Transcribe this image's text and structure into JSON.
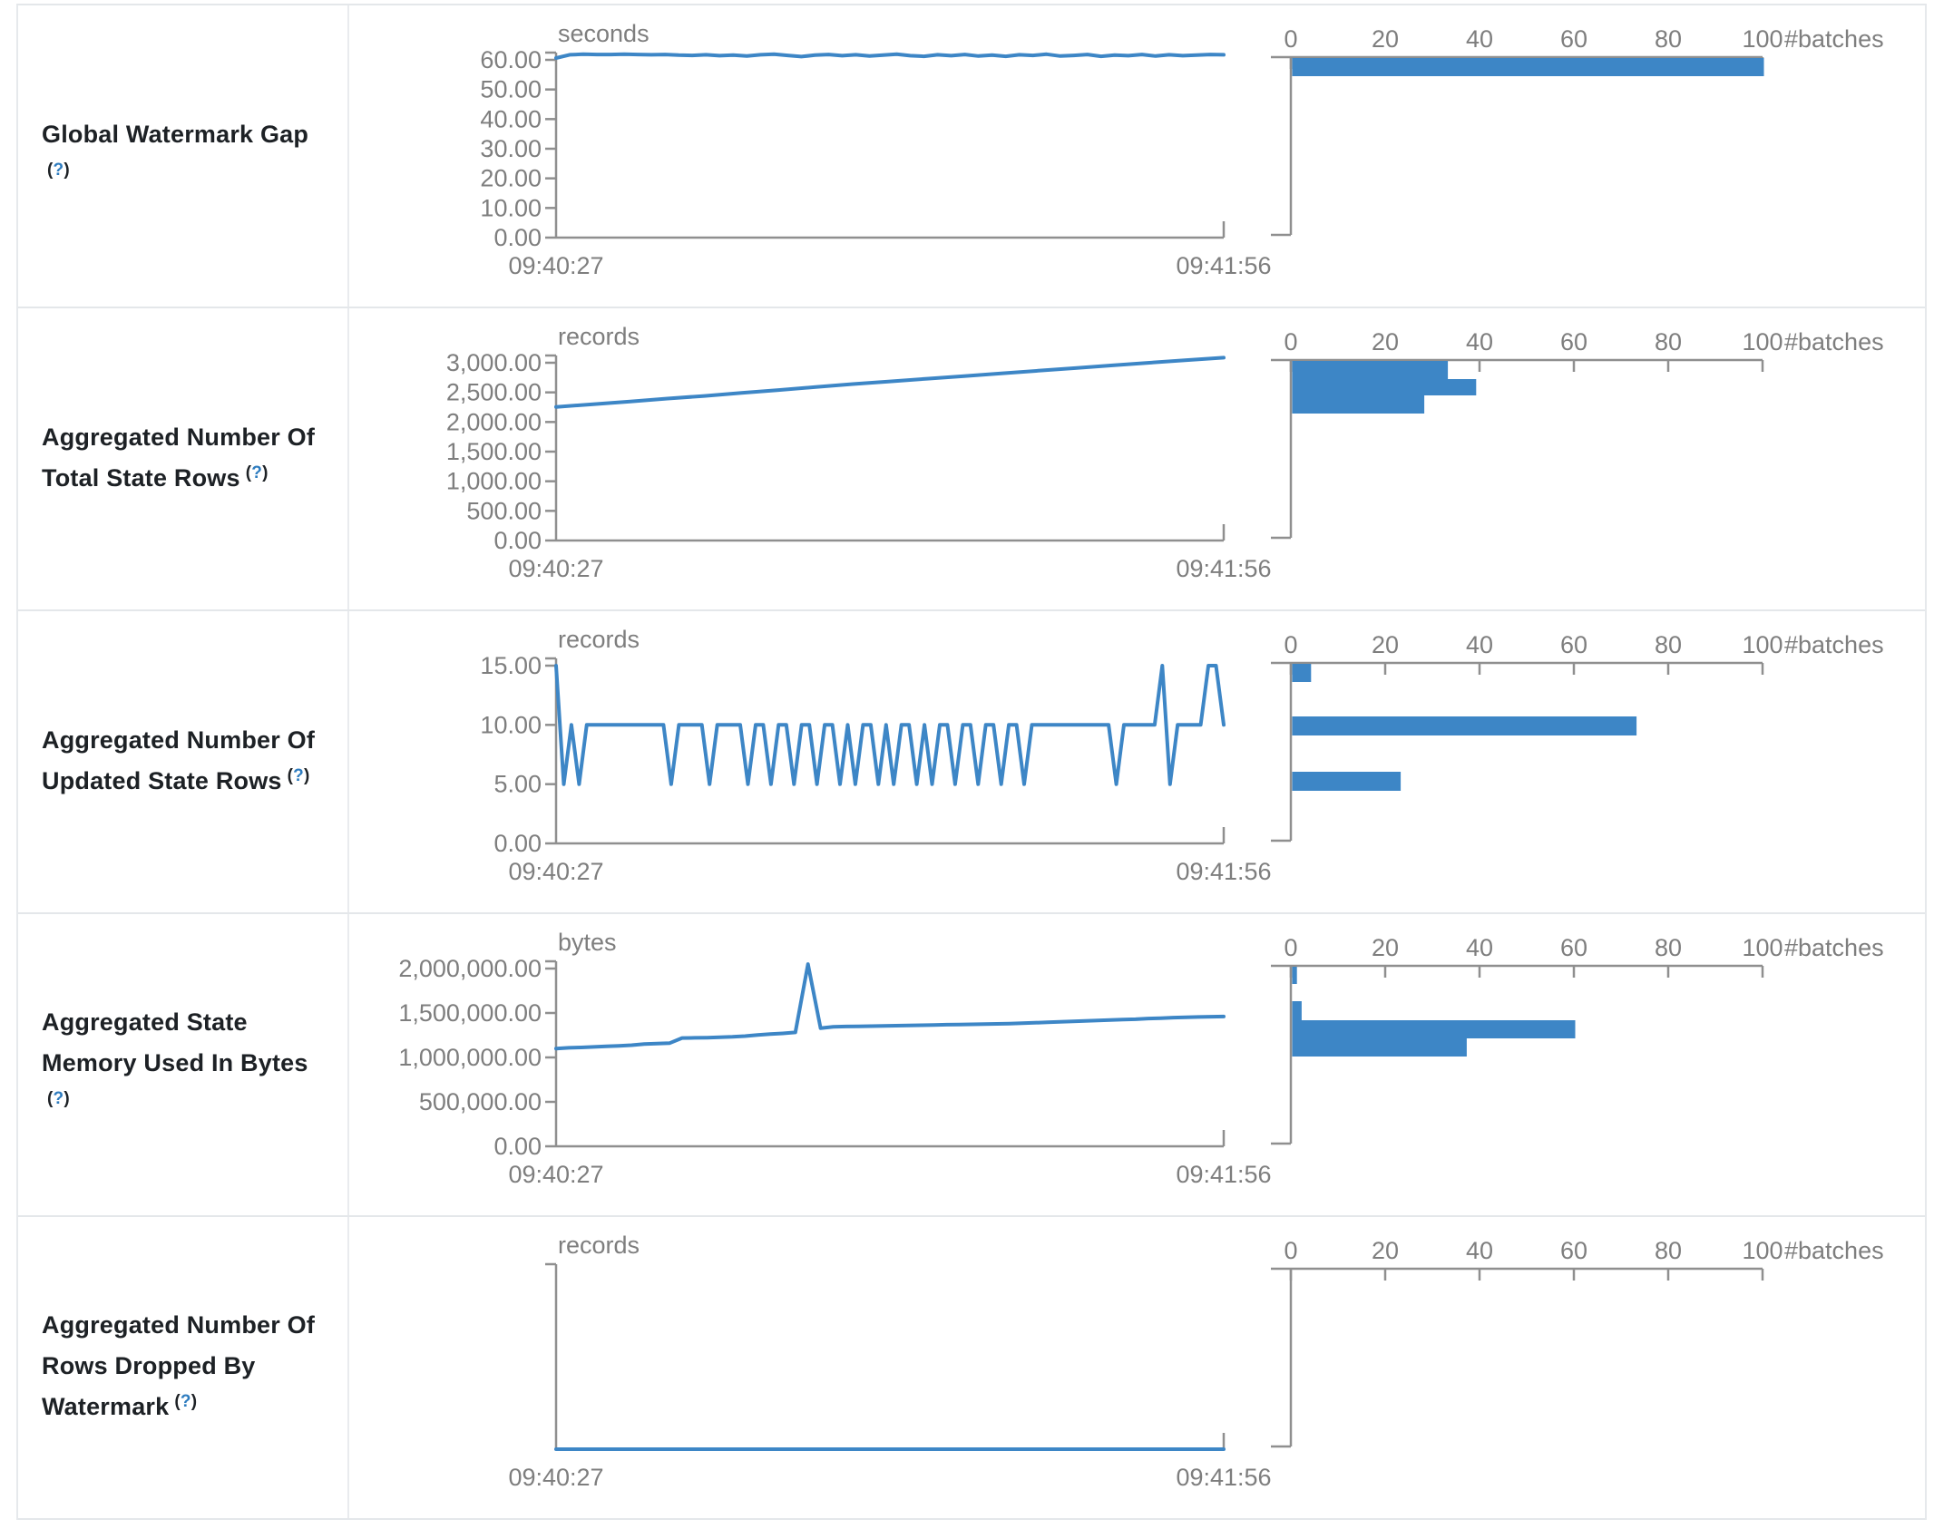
{
  "colors": {
    "accent_blue": "#3d86c6",
    "axis_gray": "#8f8f8f",
    "label_gray": "#7e7e7e",
    "title_dark": "#1d2125",
    "help_blue": "#2e7cbf",
    "border": "#e4e7ea"
  },
  "time_axis": {
    "start": "09:40:27",
    "end": "09:41:56"
  },
  "rows": [
    {
      "title_lines": [
        "Global Watermark Gap"
      ],
      "help_label": "(?)",
      "help_own_line": true
    },
    {
      "title_lines": [
        "Aggregated Number Of",
        "Total State Rows"
      ],
      "help_label": "(?)",
      "help_own_line": false
    },
    {
      "title_lines": [
        "Aggregated Number Of",
        "Updated State Rows"
      ],
      "help_label": "(?)",
      "help_own_line": false
    },
    {
      "title_lines": [
        "Aggregated State",
        "Memory Used In Bytes"
      ],
      "help_label": "(?)",
      "help_own_line": true
    },
    {
      "title_lines": [
        "Aggregated Number Of",
        "Rows Dropped By",
        "Watermark"
      ],
      "help_label": "(?)",
      "help_own_line": false
    }
  ],
  "chart_data": [
    {
      "metric": "Global Watermark Gap",
      "type": "line",
      "unit": "seconds",
      "x_start": "09:40:27",
      "x_end": "09:41:56",
      "ylim": [
        0,
        60
      ],
      "yticks": [
        {
          "v": 0,
          "label": "0.00"
        },
        {
          "v": 10,
          "label": "10.00"
        },
        {
          "v": 20,
          "label": "20.00"
        },
        {
          "v": 30,
          "label": "30.00"
        },
        {
          "v": 40,
          "label": "40.00"
        },
        {
          "v": 50,
          "label": "50.00"
        },
        {
          "v": 60,
          "label": "60.00"
        }
      ],
      "series": [
        60.6,
        61.7,
        61.9,
        61.8,
        61.8,
        61.9,
        61.8,
        61.7,
        61.8,
        61.6,
        61.5,
        61.7,
        61.4,
        61.6,
        61.3,
        61.7,
        61.9,
        61.5,
        61.1,
        61.6,
        61.8,
        61.4,
        61.7,
        61.3,
        61.6,
        61.9,
        61.4,
        61.2,
        61.7,
        61.4,
        61.8,
        61.3,
        61.6,
        61.2,
        61.7,
        61.5,
        61.9,
        61.3,
        61.5,
        61.8,
        61.2,
        61.6,
        61.4,
        61.8,
        61.3,
        61.7,
        61.4,
        61.6,
        61.8,
        61.7
      ],
      "histogram": {
        "type": "bar",
        "xlabel": "#batches",
        "xlim": [
          0,
          100
        ],
        "xticks": [
          0,
          20,
          40,
          60,
          80,
          100
        ],
        "bars": [
          {
            "count": 100,
            "value_bin": "~61 seconds",
            "y": 58,
            "h": 20
          }
        ]
      }
    },
    {
      "metric": "Aggregated Number Of Total State Rows",
      "type": "line",
      "unit": "records",
      "x_start": "09:40:27",
      "x_end": "09:41:56",
      "ylim": [
        0,
        3000
      ],
      "yticks": [
        {
          "v": 0,
          "label": "0.00"
        },
        {
          "v": 500,
          "label": "500.00"
        },
        {
          "v": 1000,
          "label": "1,000.00"
        },
        {
          "v": 1500,
          "label": "1,500.00"
        },
        {
          "v": 2000,
          "label": "2,000.00"
        },
        {
          "v": 2500,
          "label": "2,500.00"
        },
        {
          "v": 3000,
          "label": "3,000.00"
        }
      ],
      "series": [
        2255,
        2300,
        2345,
        2395,
        2440,
        2490,
        2540,
        2590,
        2640,
        2685,
        2730,
        2775,
        2820,
        2865,
        2910,
        2955,
        3000,
        3045,
        3085
      ],
      "histogram": {
        "type": "bar",
        "xlabel": "#batches",
        "xlim": [
          0,
          100
        ],
        "xticks": [
          0,
          20,
          40,
          60,
          80,
          100
        ],
        "bars": [
          {
            "count": 33,
            "value_bin": "~2,810-3,090 records",
            "y": 58,
            "h": 20
          },
          {
            "count": 39,
            "value_bin": "~2,530-2,810 records",
            "y": 78,
            "h": 18
          },
          {
            "count": 28,
            "value_bin": "~2,250-2,530 records",
            "y": 96,
            "h": 20
          }
        ]
      }
    },
    {
      "metric": "Aggregated Number Of Updated State Rows",
      "type": "line",
      "unit": "records",
      "x_start": "09:40:27",
      "x_end": "09:41:56",
      "ylim": [
        0,
        15
      ],
      "yticks": [
        {
          "v": 0,
          "label": "0.00"
        },
        {
          "v": 5,
          "label": "5.00"
        },
        {
          "v": 10,
          "label": "10.00"
        },
        {
          "v": 15,
          "label": "15.00"
        }
      ],
      "series": [
        15,
        5,
        10,
        5,
        10,
        10,
        10,
        10,
        10,
        10,
        10,
        10,
        10,
        10,
        10,
        5,
        10,
        10,
        10,
        10,
        5,
        10,
        10,
        10,
        10,
        5,
        10,
        10,
        5,
        10,
        10,
        5,
        10,
        10,
        5,
        10,
        10,
        5,
        10,
        5,
        10,
        10,
        5,
        10,
        5,
        10,
        10,
        5,
        10,
        5,
        10,
        10,
        5,
        10,
        10,
        5,
        10,
        10,
        5,
        10,
        10,
        5,
        10,
        10,
        10,
        10,
        10,
        10,
        10,
        10,
        10,
        10,
        10,
        5,
        10,
        10,
        10,
        10,
        10,
        15,
        5,
        10,
        10,
        10,
        10,
        15,
        15,
        10
      ],
      "histogram": {
        "type": "bar",
        "xlabel": "#batches",
        "xlim": [
          0,
          100
        ],
        "xticks": [
          0,
          20,
          40,
          60,
          80,
          100
        ],
        "bars": [
          {
            "count": 4,
            "value_bin": "15 records",
            "y": 58,
            "h": 20
          },
          {
            "count": 73,
            "value_bin": "10 records",
            "y": 116,
            "h": 21
          },
          {
            "count": 23,
            "value_bin": "5 records",
            "y": 177,
            "h": 21
          }
        ]
      }
    },
    {
      "metric": "Aggregated State Memory Used In Bytes",
      "type": "line",
      "unit": "bytes",
      "x_start": "09:40:27",
      "x_end": "09:41:56",
      "ylim": [
        0,
        2000000
      ],
      "yticks": [
        {
          "v": 0,
          "label": "0.00"
        },
        {
          "v": 500000,
          "label": "500,000.00"
        },
        {
          "v": 1000000,
          "label": "1,000,000.00"
        },
        {
          "v": 1500000,
          "label": "1,500,000.00"
        },
        {
          "v": 2000000,
          "label": "2,000,000.00"
        }
      ],
      "series": [
        1100000,
        1108000,
        1112000,
        1118000,
        1125000,
        1130000,
        1138000,
        1150000,
        1155000,
        1160000,
        1218000,
        1220000,
        1222000,
        1228000,
        1232000,
        1240000,
        1252000,
        1262000,
        1270000,
        1282000,
        2050000,
        1330000,
        1345000,
        1348000,
        1350000,
        1352000,
        1355000,
        1357000,
        1360000,
        1362000,
        1365000,
        1368000,
        1370000,
        1372000,
        1375000,
        1378000,
        1380000,
        1385000,
        1390000,
        1395000,
        1400000,
        1405000,
        1410000,
        1415000,
        1420000,
        1425000,
        1430000,
        1438000,
        1442000,
        1448000,
        1452000,
        1455000,
        1458000,
        1460000
      ],
      "histogram": {
        "type": "bar",
        "xlabel": "#batches",
        "xlim": [
          0,
          100
        ],
        "xticks": [
          0,
          20,
          40,
          60,
          80,
          100
        ],
        "bars": [
          {
            "count": 1,
            "value_bin": "~1,900,000-2,050,000 bytes",
            "y": 58,
            "h": 19
          },
          {
            "count": 2,
            "value_bin": "~1,470-1,670 thousand bytes",
            "y": 96,
            "h": 21
          },
          {
            "count": 60,
            "value_bin": "~1,260-1,460 thousand bytes",
            "y": 117,
            "h": 20
          },
          {
            "count": 37,
            "value_bin": "~1,060-1,260 thousand bytes",
            "y": 137,
            "h": 20
          }
        ]
      }
    },
    {
      "metric": "Aggregated Number Of Rows Dropped By Watermark",
      "type": "line",
      "unit": "records",
      "x_start": "09:40:27",
      "x_end": "09:41:56",
      "ylim": [
        0,
        1
      ],
      "yticks": [],
      "series": [
        0,
        0
      ],
      "histogram": {
        "type": "bar",
        "xlabel": "#batches",
        "xlim": [
          0,
          100
        ],
        "xticks": [
          0,
          20,
          40,
          60,
          80,
          100
        ],
        "bars": []
      }
    }
  ]
}
